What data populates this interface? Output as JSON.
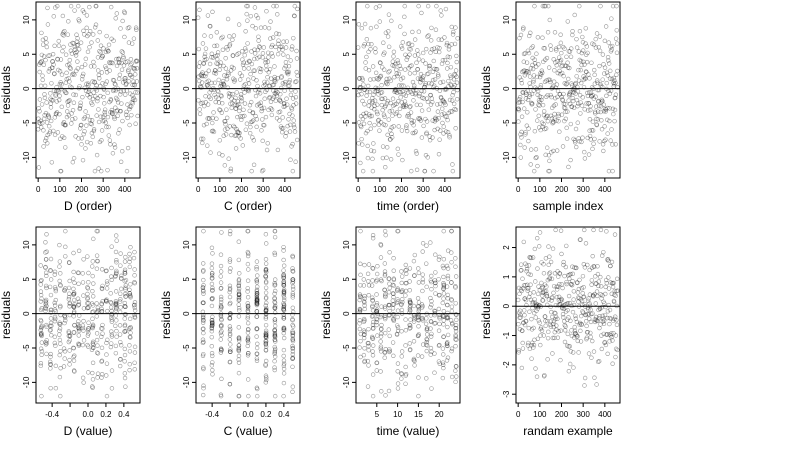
{
  "figure": {
    "background": "#ffffff"
  },
  "chart_data": [
    {
      "type": "scatter",
      "xlabel": "D (order)",
      "ylabel": "residuals",
      "xlim": [
        -10,
        470
      ],
      "ylim": [
        -13,
        12.6
      ],
      "xticks": [
        0,
        100,
        200,
        300,
        400
      ],
      "yticks": [
        -10,
        -5,
        0,
        5,
        10
      ],
      "reference_line_y": 0,
      "n_points": 460,
      "pattern": "index",
      "y_sd": 5.2,
      "y_clip": [
        -12,
        12
      ],
      "seed": 11
    },
    {
      "type": "scatter",
      "xlabel": "C (order)",
      "ylabel": "residuals",
      "xlim": [
        -10,
        470
      ],
      "ylim": [
        -13,
        12.6
      ],
      "xticks": [
        0,
        100,
        200,
        300,
        400
      ],
      "yticks": [
        -10,
        -5,
        0,
        5,
        10
      ],
      "reference_line_y": 0,
      "n_points": 460,
      "pattern": "index",
      "y_sd": 5.2,
      "y_clip": [
        -12,
        12
      ],
      "seed": 23
    },
    {
      "type": "scatter",
      "xlabel": "time (order)",
      "ylabel": "residuals",
      "xlim": [
        -10,
        470
      ],
      "ylim": [
        -13,
        12.6
      ],
      "xticks": [
        0,
        100,
        200,
        300,
        400
      ],
      "yticks": [
        -10,
        -5,
        0,
        5,
        10
      ],
      "reference_line_y": 0,
      "n_points": 460,
      "pattern": "index",
      "y_sd": 5.2,
      "y_clip": [
        -12,
        12
      ],
      "seed": 37
    },
    {
      "type": "scatter",
      "xlabel": "sample index",
      "ylabel": "residuals",
      "xlim": [
        -10,
        470
      ],
      "ylim": [
        -13,
        12.6
      ],
      "xticks": [
        0,
        100,
        200,
        300,
        400
      ],
      "yticks": [
        -10,
        -5,
        0,
        5,
        10
      ],
      "reference_line_y": 0,
      "n_points": 460,
      "pattern": "index",
      "y_sd": 5.2,
      "y_clip": [
        -12,
        12
      ],
      "seed": 41
    },
    {
      "type": "scatter",
      "xlabel": "D (value)",
      "ylabel": "residuals",
      "xlim": [
        -0.58,
        0.58
      ],
      "ylim": [
        -13,
        12.6
      ],
      "xticks": [
        -0.4,
        -0.2,
        0.0,
        0.2,
        0.4
      ],
      "xticklabels": [
        "-0.4",
        "",
        "0.0",
        "0.2",
        "0.4"
      ],
      "yticks": [
        -10,
        -5,
        0,
        5,
        10
      ],
      "reference_line_y": 0,
      "n_points": 460,
      "pattern": "levels",
      "x_levels_range": [
        -0.52,
        0.52
      ],
      "n_levels": 21,
      "level_jitter": 0.008,
      "y_sd": 5.0,
      "y_clip": [
        -12,
        12
      ],
      "seed": 53
    },
    {
      "type": "scatter",
      "xlabel": "C (value)",
      "ylabel": "residuals",
      "xlim": [
        -0.58,
        0.58
      ],
      "ylim": [
        -13,
        12.6
      ],
      "xticks": [
        -0.4,
        -0.2,
        0.0,
        0.2,
        0.4
      ],
      "xticklabels": [
        "-0.4",
        "",
        "0.0",
        "0.2",
        "0.4"
      ],
      "yticks": [
        -10,
        -5,
        0,
        5,
        10
      ],
      "reference_line_y": 0,
      "n_points": 460,
      "pattern": "levels",
      "x_levels_range": [
        -0.5,
        0.5
      ],
      "n_levels": 11,
      "level_jitter": 0.004,
      "y_sd": 5.0,
      "y_clip": [
        -12,
        12
      ],
      "seed": 67
    },
    {
      "type": "scatter",
      "xlabel": "time (value)",
      "ylabel": "residuals",
      "xlim": [
        0,
        25
      ],
      "ylim": [
        -13,
        12.6
      ],
      "xticks": [
        5,
        10,
        15,
        20
      ],
      "yticks": [
        -10,
        -5,
        0,
        5,
        10
      ],
      "reference_line_y": 0,
      "n_points": 460,
      "pattern": "levels",
      "x_levels_range": [
        1,
        24
      ],
      "n_levels": 24,
      "level_jitter": 0.15,
      "y_sd": 5.0,
      "y_clip": [
        -12,
        12
      ],
      "seed": 79
    },
    {
      "type": "scatter",
      "xlabel": "randam example",
      "ylabel": "residuals",
      "xlim": [
        -10,
        470
      ],
      "ylim": [
        -3.3,
        2.7
      ],
      "xticks": [
        0,
        100,
        200,
        300,
        400
      ],
      "yticks": [
        -3,
        -2,
        -1,
        0,
        1,
        2
      ],
      "reference_line_y": 0,
      "n_points": 460,
      "pattern": "index",
      "y_sd": 1.05,
      "y_clip": [
        -3.2,
        2.6
      ],
      "seed": 97
    }
  ]
}
